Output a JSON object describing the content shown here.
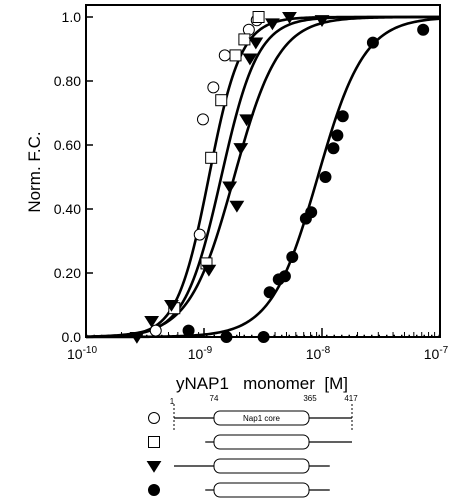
{
  "chart_data": {
    "type": "scatter",
    "ylabel": "Norm. F.C.",
    "xlabel": "yNAP1   monomer  [M]",
    "x_scale": "log",
    "xlim": [
      1e-10,
      1e-07
    ],
    "ylim": [
      0,
      1.05
    ],
    "x_ticks": [
      {
        "value": 1e-10,
        "mant": "10",
        "exp": "-10"
      },
      {
        "value": 1e-09,
        "mant": "10",
        "exp": "-9"
      },
      {
        "value": 1e-08,
        "mant": "10",
        "exp": "-8"
      },
      {
        "value": 1e-07,
        "mant": "10",
        "exp": "-7"
      }
    ],
    "y_ticks": [
      {
        "value": 0.0,
        "label": "0.0"
      },
      {
        "value": 0.2,
        "label": "0.20"
      },
      {
        "value": 0.4,
        "label": "0.40"
      },
      {
        "value": 0.6,
        "label": "0.60"
      },
      {
        "value": 0.8,
        "label": "0.80"
      },
      {
        "value": 1.0,
        "label": "1.0"
      }
    ],
    "baseline": {
      "value": 0.0,
      "style": "dotted"
    },
    "series": [
      {
        "marker": "open-circle",
        "fit": {
          "ec50": 1.1e-09,
          "hill": 3.2
        },
        "points": [
          {
            "x": 3.9e-10,
            "y": 0.02
          },
          {
            "x": 9.2e-10,
            "y": 0.32
          },
          {
            "x": 9.8e-10,
            "y": 0.68
          },
          {
            "x": 1.2e-09,
            "y": 0.78
          },
          {
            "x": 1.5e-09,
            "y": 0.88
          },
          {
            "x": 2.4e-09,
            "y": 0.96
          },
          {
            "x": 2.8e-09,
            "y": 0.99
          }
        ]
      },
      {
        "marker": "open-square",
        "fit": {
          "ec50": 1.4e-09,
          "hill": 2.8
        },
        "points": [
          {
            "x": 5.6e-10,
            "y": 0.09
          },
          {
            "x": 1.05e-09,
            "y": 0.23
          },
          {
            "x": 1.15e-09,
            "y": 0.56
          },
          {
            "x": 1.4e-09,
            "y": 0.74
          },
          {
            "x": 1.85e-09,
            "y": 0.88
          },
          {
            "x": 2.2e-09,
            "y": 0.93
          },
          {
            "x": 2.9e-09,
            "y": 1.0
          }
        ]
      },
      {
        "marker": "filled-triangle-down",
        "fit": {
          "ec50": 1.8e-09,
          "hill": 2.3
        },
        "points": [
          {
            "x": 2.7e-10,
            "y": 0.0
          },
          {
            "x": 3.6e-10,
            "y": 0.05
          },
          {
            "x": 5.3e-10,
            "y": 0.1
          },
          {
            "x": 1.1e-09,
            "y": 0.21
          },
          {
            "x": 1.65e-09,
            "y": 0.47
          },
          {
            "x": 1.9e-09,
            "y": 0.41
          },
          {
            "x": 2.05e-09,
            "y": 0.59
          },
          {
            "x": 2.3e-09,
            "y": 0.68
          },
          {
            "x": 2.45e-09,
            "y": 0.87
          },
          {
            "x": 2.75e-09,
            "y": 0.92
          },
          {
            "x": 3.8e-09,
            "y": 0.98
          },
          {
            "x": 5.3e-09,
            "y": 1.0
          },
          {
            "x": 1e-08,
            "y": 0.99
          }
        ]
      },
      {
        "marker": "filled-circle",
        "fit": {
          "ec50": 9.2e-09,
          "hill": 2.2
        },
        "points": [
          {
            "x": 7.4e-10,
            "y": 0.02
          },
          {
            "x": 1.55e-09,
            "y": 0.0
          },
          {
            "x": 3.2e-09,
            "y": 0.0
          },
          {
            "x": 3.6e-09,
            "y": 0.14
          },
          {
            "x": 4.3e-09,
            "y": 0.18
          },
          {
            "x": 4.85e-09,
            "y": 0.19
          },
          {
            "x": 5.6e-09,
            "y": 0.25
          },
          {
            "x": 7.3e-09,
            "y": 0.37
          },
          {
            "x": 8.1e-09,
            "y": 0.39
          },
          {
            "x": 1.07e-08,
            "y": 0.5
          },
          {
            "x": 1.25e-08,
            "y": 0.59
          },
          {
            "x": 1.35e-08,
            "y": 0.63
          },
          {
            "x": 1.5e-08,
            "y": 0.69
          },
          {
            "x": 2.7e-08,
            "y": 0.92
          },
          {
            "x": 7.2e-08,
            "y": 0.96
          }
        ]
      }
    ]
  },
  "constructs": {
    "core_label": "Nap1 core",
    "boundaries": [
      {
        "key": "start",
        "label": "1",
        "residue": 1
      },
      {
        "key": "core_start",
        "label": "74",
        "residue": 74
      },
      {
        "key": "core_end",
        "label": "365",
        "residue": 365
      },
      {
        "key": "end",
        "label": "417",
        "residue": 417
      }
    ],
    "rows": [
      {
        "marker": "open-circle",
        "start": 1,
        "end": 417,
        "show_core_label": true
      },
      {
        "marker": "open-square",
        "start": 74,
        "end": 417,
        "show_core_label": false
      },
      {
        "marker": "filled-triangle-down",
        "start": 1,
        "end": 365,
        "show_core_label": false
      },
      {
        "marker": "filled-circle",
        "start": 74,
        "end": 365,
        "show_core_label": false
      }
    ]
  }
}
